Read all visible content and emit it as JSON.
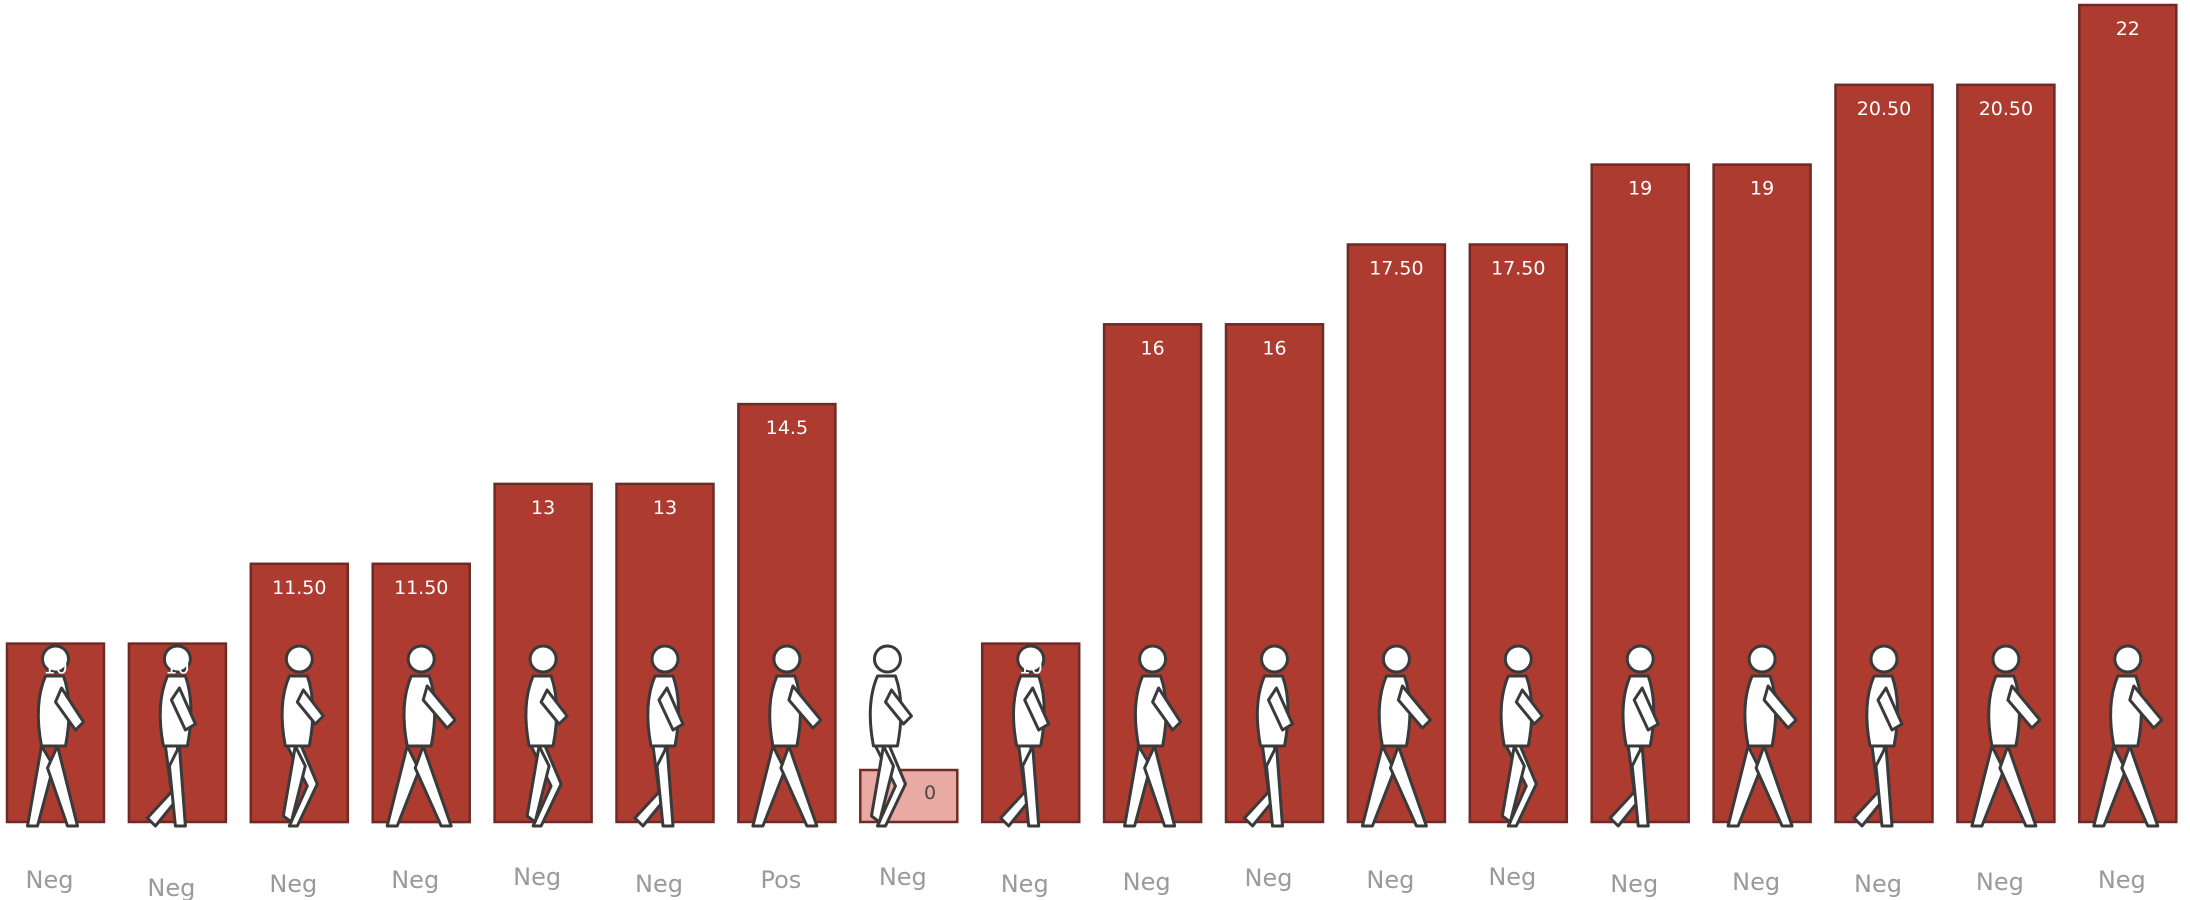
{
  "chart_data": {
    "type": "bar",
    "categories": [
      "Neg",
      "Neg",
      "Neg",
      "Neg",
      "Neg",
      "Neg",
      "Pos",
      "Neg",
      "Neg",
      "Neg",
      "Neg",
      "Neg",
      "Neg",
      "Neg",
      "Neg",
      "Neg",
      "Neg",
      "Neg"
    ],
    "values": [
      10,
      10,
      11.5,
      11.5,
      13,
      13,
      14.5,
      0,
      10,
      16,
      16,
      17.5,
      17.5,
      19,
      19,
      20.5,
      20.5,
      22
    ],
    "data_labels": [
      "10",
      "10",
      "11.50",
      "11.50",
      "13",
      "13",
      "14.5",
      "0",
      "10",
      "16",
      "16",
      "17.50",
      "17.50",
      "19",
      "19",
      "20.50",
      "20.50",
      "22"
    ],
    "title": "",
    "xlabel": "",
    "ylabel": "",
    "ylim": [
      8,
      22
    ],
    "grid": false,
    "legend": "none",
    "colors": {
      "bar": "#ad3b30",
      "bar_stroke": "#6e2a24",
      "bar_zero": "#e8aaa2",
      "figure_fill": "#ffffff",
      "figure_stroke": "#3a3a3a",
      "category_text": "#9a9a9a"
    },
    "icon": "walking-person-icon"
  }
}
